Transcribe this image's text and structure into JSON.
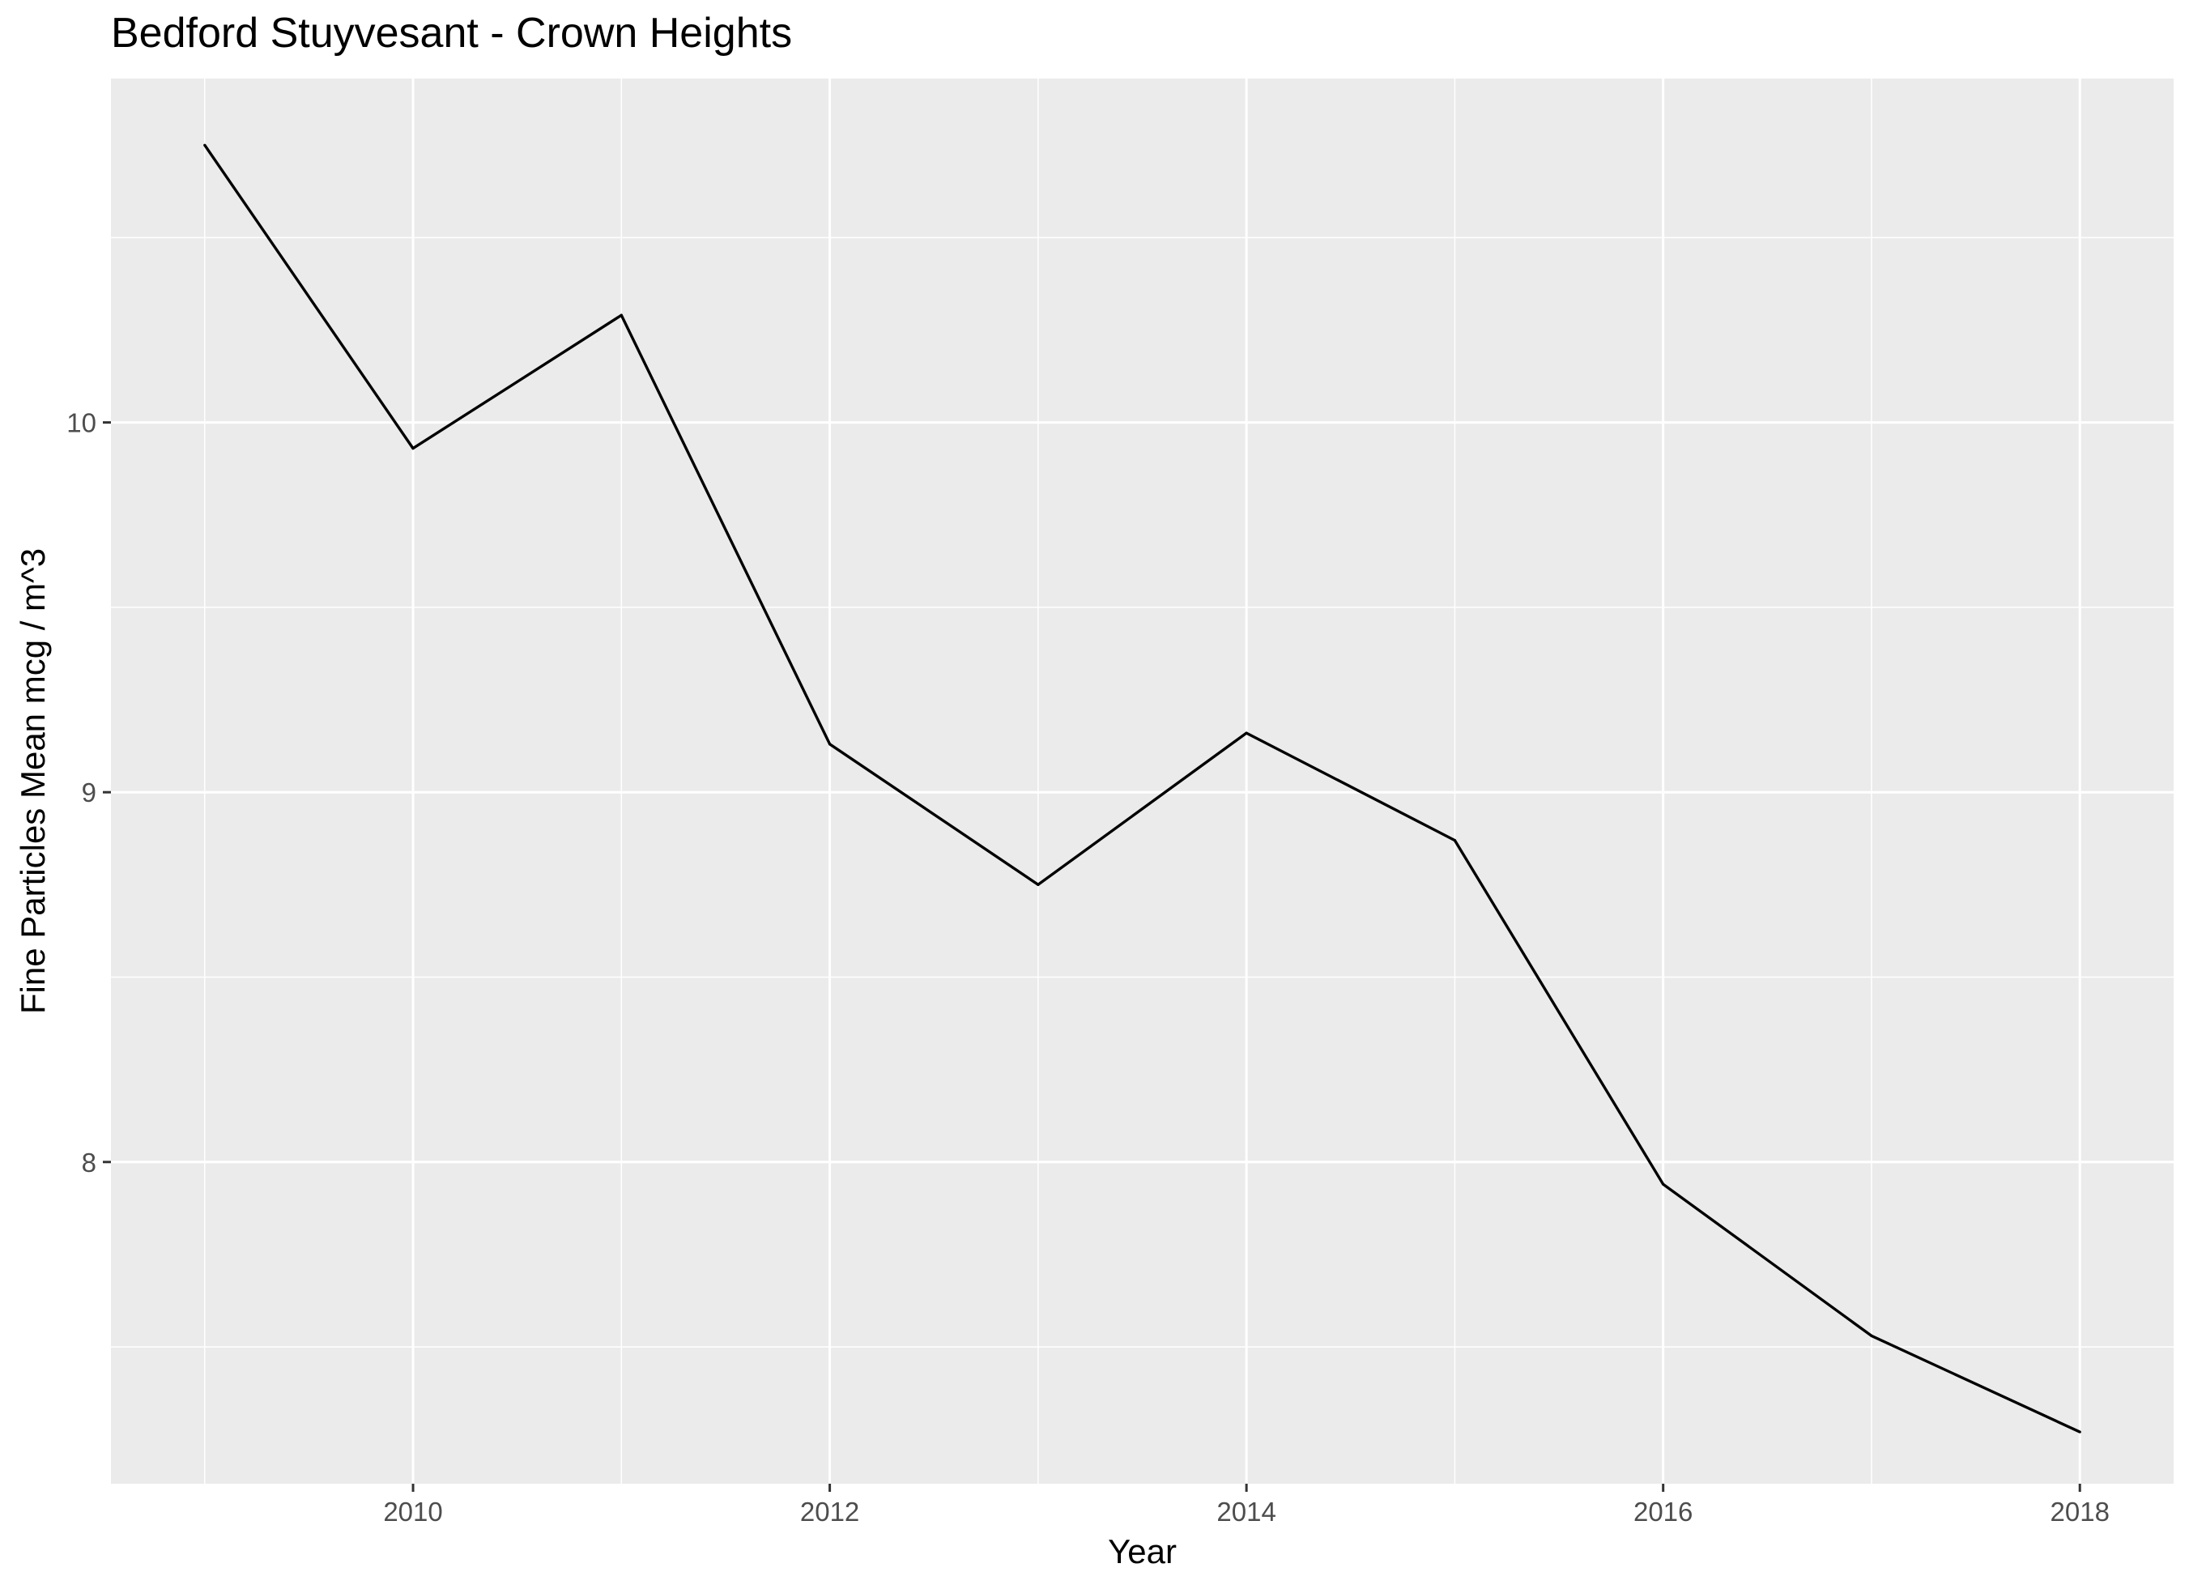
{
  "chart_data": {
    "type": "line",
    "title": "Bedford Stuyvesant - Crown Heights",
    "xlabel": "Year",
    "ylabel": "Fine Particles Mean mcg / m^3",
    "x": [
      2009,
      2010,
      2011,
      2012,
      2013,
      2014,
      2015,
      2016,
      2017,
      2018
    ],
    "series": [
      {
        "values": [
          10.75,
          9.93,
          10.29,
          9.13,
          8.75,
          9.16,
          8.87,
          7.94,
          7.53,
          7.27
        ]
      }
    ],
    "xlim": [
      2008.55,
      2018.45
    ],
    "ylim": [
      7.13,
      10.93
    ],
    "x_ticks": [
      2010,
      2012,
      2014,
      2016,
      2018
    ],
    "x_tick_labels": [
      "2010",
      "2012",
      "2014",
      "2016",
      "2018"
    ],
    "y_ticks": [
      8,
      9,
      10
    ],
    "y_tick_labels": [
      "8",
      "9",
      "10"
    ],
    "grid": true,
    "colors": {
      "panel_background": "#ebebeb",
      "grid_line": "#ffffff",
      "series_line": "#000000",
      "tick_mark": "#333333"
    }
  }
}
